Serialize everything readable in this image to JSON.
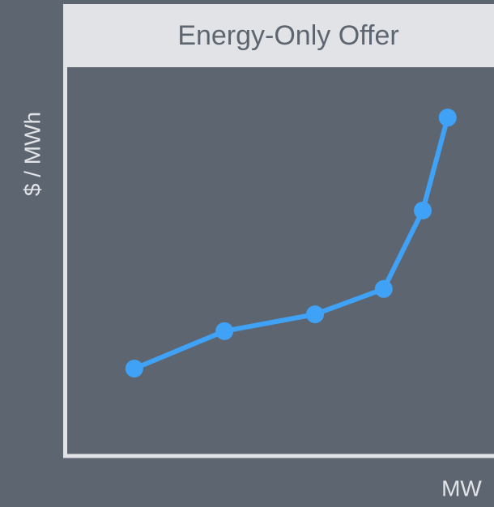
{
  "chart_data": {
    "type": "line",
    "title": "Energy-Only Offer",
    "x_label": "MW",
    "y_label": "$ / MWh",
    "x": [
      16.2,
      37.2,
      58.3,
      74.3,
      83.4,
      89.2
    ],
    "series": [
      {
        "color": "#3fa2f7",
        "values": [
          22.8,
          32.4,
          36.7,
          43.2,
          63.3,
          87.1
        ]
      }
    ],
    "xlim": [
      0,
      100
    ],
    "ylim": [
      0,
      100
    ]
  }
}
